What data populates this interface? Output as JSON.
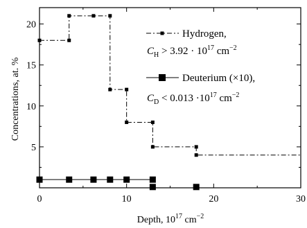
{
  "chart_data": {
    "type": "line",
    "xlabel": "Depth, 10",
    "xlabel_sup": "17",
    "xlabel_unit": "cm",
    "xlabel_unit_sup": "−2",
    "ylabel": "Concentrations, at. %",
    "xlim": [
      0,
      30
    ],
    "ylim": [
      0,
      22
    ],
    "x_ticks": [
      0,
      10,
      20,
      30
    ],
    "y_ticks": [
      5,
      10,
      15,
      20
    ],
    "grid": false,
    "legend_position": "top-right",
    "series": [
      {
        "name": "Hydrogen,",
        "style": "dash-dot step",
        "marker": "small-square",
        "points": [
          [
            0,
            18
          ],
          [
            3.4,
            18
          ],
          [
            3.4,
            21
          ],
          [
            6.2,
            21
          ],
          [
            8.1,
            21
          ],
          [
            8.1,
            12
          ],
          [
            10,
            12
          ],
          [
            10,
            8
          ],
          [
            13,
            8
          ],
          [
            13,
            5
          ],
          [
            18,
            5
          ],
          [
            18,
            4
          ],
          [
            30,
            4
          ]
        ],
        "markers": [
          [
            0,
            18
          ],
          [
            3.4,
            18
          ],
          [
            3.4,
            21
          ],
          [
            6.2,
            21
          ],
          [
            8.1,
            21
          ],
          [
            8.1,
            12
          ],
          [
            10,
            12
          ],
          [
            10,
            8
          ],
          [
            13,
            8
          ],
          [
            13,
            5
          ],
          [
            18,
            5
          ],
          [
            18,
            4
          ]
        ]
      },
      {
        "name": "Deuterium (×10),",
        "style": "solid",
        "marker": "large-square",
        "points": [
          [
            0,
            1
          ],
          [
            13,
            1
          ]
        ],
        "markers": [
          [
            0,
            1
          ],
          [
            3.4,
            1
          ],
          [
            6.2,
            1
          ],
          [
            8.1,
            1
          ],
          [
            10,
            1
          ],
          [
            13,
            1
          ],
          [
            13,
            0.1
          ],
          [
            18,
            0.1
          ]
        ]
      }
    ],
    "legend": [
      {
        "label": "Hydrogen,",
        "condition": {
          "var": "C",
          "sub": "H",
          "op": " > ",
          "value": "3.92 · 10",
          "exp": "17",
          "unit": " cm",
          "unit_exp": "−2"
        }
      },
      {
        "label": "Deuterium (×10),",
        "condition": {
          "var": "C",
          "sub": "D",
          "op": " < ",
          "value": "0.013 ·10",
          "exp": "17",
          "unit": " cm",
          "unit_exp": "−2"
        }
      }
    ],
    "colors": {
      "axis": "#000000",
      "series": "#000000",
      "background": "#ffffff"
    }
  }
}
